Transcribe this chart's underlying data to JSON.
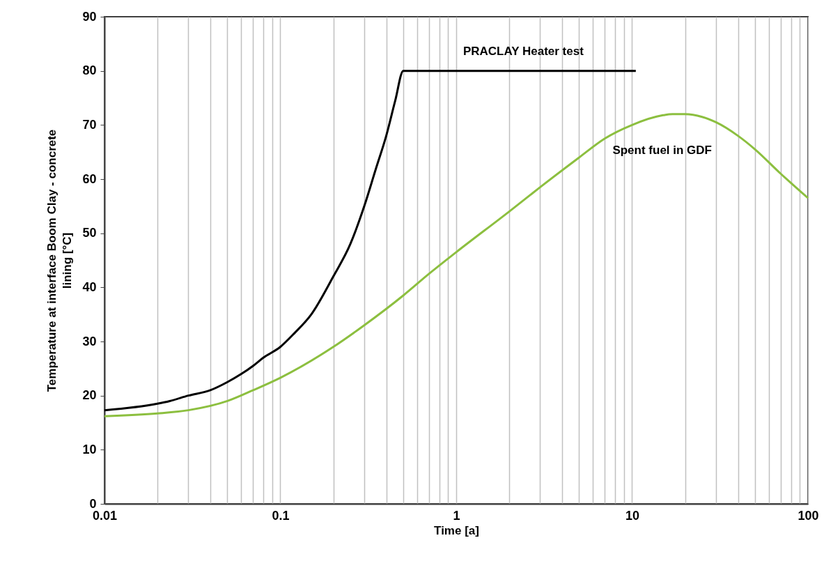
{
  "chart_data": {
    "type": "line",
    "xlabel": "Time [a]",
    "ylabel": "Temperature at interface Boom Clay - concrete lining [°C]",
    "log": "x",
    "grid": "x",
    "marker": "none",
    "line_style": "solid",
    "xlim": [
      0.01,
      100
    ],
    "ylim": [
      0,
      90
    ],
    "xticks": [
      0.01,
      {
        "value": 0.02,
        "label": null
      },
      {
        "value": 0.03,
        "label": null
      },
      {
        "value": 0.04,
        "label": null
      },
      {
        "value": 0.05,
        "label": null
      },
      {
        "value": 0.06,
        "label": null
      },
      {
        "value": 0.07,
        "label": null
      },
      {
        "value": 0.08,
        "label": null
      },
      {
        "value": 0.09,
        "label": null
      },
      0.1,
      {
        "value": 0.2,
        "label": null
      },
      {
        "value": 0.3,
        "label": null
      },
      {
        "value": 0.4,
        "label": null
      },
      {
        "value": 0.5,
        "label": null
      },
      {
        "value": 0.6,
        "label": null
      },
      {
        "value": 0.7,
        "label": null
      },
      {
        "value": 0.8,
        "label": null
      },
      {
        "value": 0.9,
        "label": null
      },
      1,
      {
        "value": 2,
        "label": null
      },
      {
        "value": 3,
        "label": null
      },
      {
        "value": 4,
        "label": null
      },
      {
        "value": 5,
        "label": null
      },
      {
        "value": 6,
        "label": null
      },
      {
        "value": 7,
        "label": null
      },
      {
        "value": 8,
        "label": null
      },
      {
        "value": 9,
        "label": null
      },
      10,
      {
        "value": 20,
        "label": null
      },
      {
        "value": 30,
        "label": null
      },
      {
        "value": 40,
        "label": null
      },
      {
        "value": 50,
        "label": null
      },
      {
        "value": 60,
        "label": null
      },
      {
        "value": 70,
        "label": null
      },
      {
        "value": 80,
        "label": null
      },
      {
        "value": 90,
        "label": null
      },
      100
    ],
    "yticks": [
      0,
      10,
      20,
      30,
      40,
      50,
      60,
      70,
      80,
      90
    ],
    "series": [
      {
        "name": "PRACLAY Heater test",
        "color": "#000000",
        "x": [
          0.01,
          0.02,
          0.0235,
          0.03,
          0.04,
          0.05,
          0.06,
          0.07,
          0.08,
          0.1,
          0.12,
          0.15,
          0.2,
          0.25,
          0.3,
          0.35,
          0.4,
          0.45,
          0.5,
          10.5
        ],
        "values": [
          17.3,
          18.5,
          19,
          20,
          21,
          22.5,
          24,
          25.5,
          27,
          29,
          31.5,
          35,
          42,
          48,
          55,
          62,
          68,
          74.5,
          80,
          80
        ]
      },
      {
        "name": "Spent fuel in GDF",
        "color": "#8cbf3f",
        "x": [
          0.01,
          0.02,
          0.03,
          0.05,
          0.07,
          0.1,
          0.2,
          0.3,
          0.5,
          0.7,
          1,
          2,
          3,
          5,
          7,
          10,
          15,
          17,
          20,
          25,
          30,
          40,
          50,
          70,
          100
        ],
        "values": [
          16.2,
          16.7,
          17.3,
          19,
          21,
          23.3,
          29,
          33,
          38.5,
          42.5,
          46.5,
          54,
          58.5,
          64,
          67.5,
          70,
          71.8,
          72,
          72,
          71.5,
          70.5,
          68,
          65.5,
          61,
          56.5
        ]
      }
    ]
  }
}
